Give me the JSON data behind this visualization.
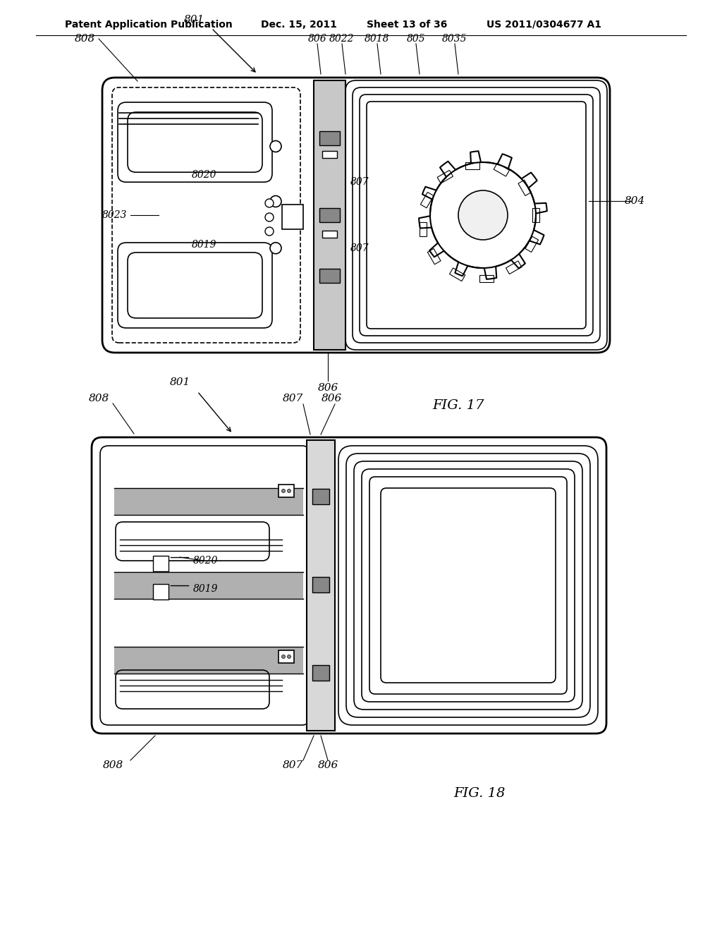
{
  "bg_color": "#ffffff",
  "line_color": "#000000",
  "header_text": "Patent Application Publication",
  "header_date": "Dec. 15, 2011",
  "header_sheet": "Sheet 13 of 36",
  "header_patent": "US 2011/0304677 A1",
  "fig17_label": "FIG. 17",
  "fig18_label": "FIG. 18",
  "font_color": "#000000"
}
